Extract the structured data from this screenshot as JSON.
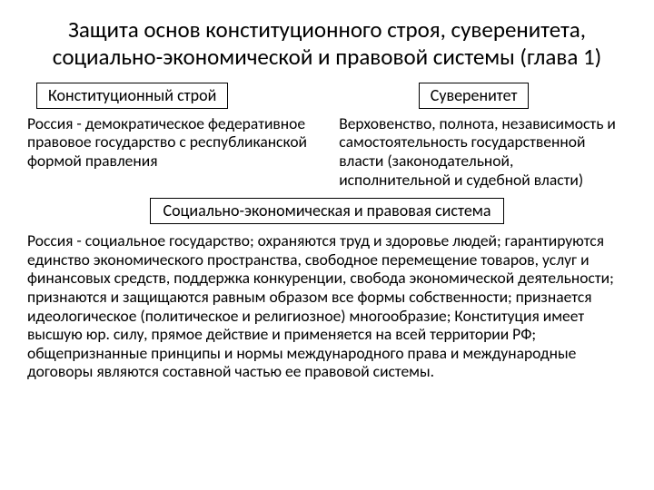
{
  "title": "Защита основ конституционного строя, суверенитета, социально-экономической и правовой системы (глава 1)",
  "left": {
    "box": "Конституционный строй",
    "desc": "Россия - демократическое федеративное правовое государство с республиканской формой правления"
  },
  "right": {
    "box": "Суверенитет",
    "desc": "Верховенство, полнота, независимость и самостоятельность государственной власти (законодательной, исполнительной и судебной власти)"
  },
  "center": {
    "box": "Социально-экономическая и правовая система"
  },
  "bottom": "Россия - социальное государство; охраняются труд и здоровье людей; гарантируются единство экономического пространства, свободное перемещение товаров, услуг и финансовых средств, поддержка конкуренции, свобода экономической деятельности; признаются и защищаются равным образом все формы собственности; признается идеологическое (политическое и религиозное) многообразие; Конституция имеет высшую юр. силу, прямое действие и применяется на всей территории РФ; общепризнанные принципы и нормы международного права и международные договоры являются составной частью ее правовой системы."
}
